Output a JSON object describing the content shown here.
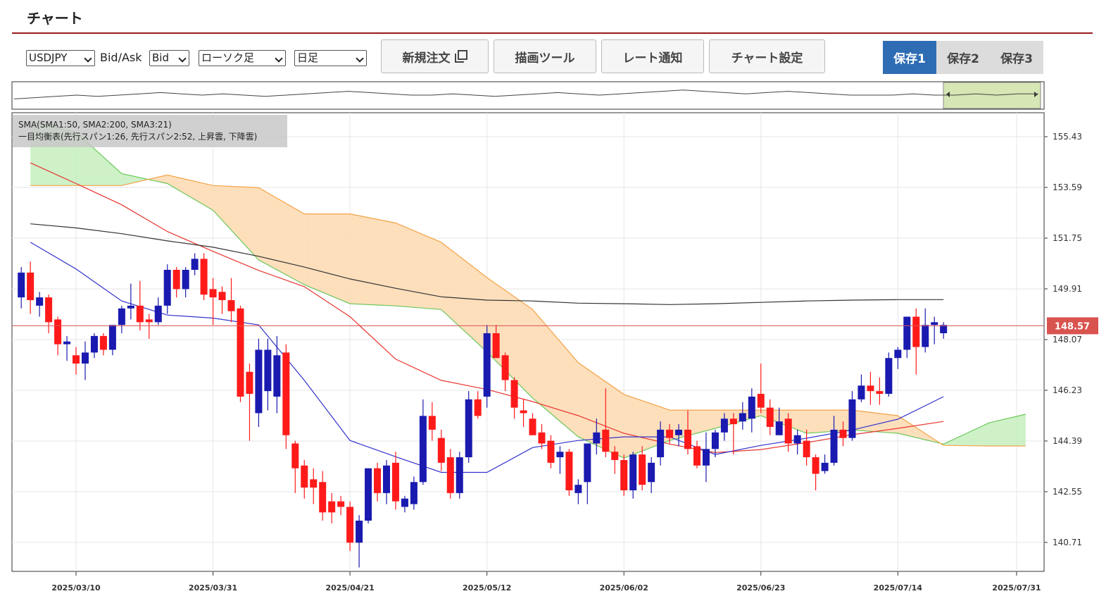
{
  "header": {
    "title": "チャート"
  },
  "toolbar": {
    "symbol": "USDJPY",
    "side_label": "Bid/Ask",
    "side": "Bid",
    "chart_style": "ローソク足",
    "period": "日足",
    "buttons": [
      "新規注文",
      "描画ツール",
      "レート通知",
      "チャート設定"
    ],
    "tabs": [
      "保存1",
      "保存2",
      "保存3"
    ]
  },
  "navigator": {
    "ylim": [
      140,
      160
    ],
    "values": [
      147,
      148,
      149,
      150,
      149,
      150,
      151,
      152,
      151,
      150,
      151,
      150,
      149,
      150,
      151,
      152,
      153,
      152,
      151,
      150,
      150,
      151,
      150,
      149,
      150,
      151,
      152,
      151,
      150,
      151,
      152,
      153,
      154,
      153,
      152,
      151,
      152,
      153,
      152,
      151,
      150,
      150,
      150,
      151,
      150,
      150,
      151,
      150,
      151,
      151
    ]
  },
  "chart_data": {
    "type": "candlestick",
    "legend_lines": [
      "SMA(SMA1:50, SMA2:200, SMA3:21)",
      "一目均衡表(先行スパン1:26, 先行スパン2:52, 上昇雲, 下降雲)"
    ],
    "categories": [
      "2025/02/28",
      "2025/03/03",
      "2025/03/04",
      "2025/03/05",
      "2025/03/06",
      "2025/03/07",
      "2025/03/10",
      "2025/03/11",
      "2025/03/12",
      "2025/03/13",
      "2025/03/14",
      "2025/03/17",
      "2025/03/18",
      "2025/03/19",
      "2025/03/20",
      "2025/03/21",
      "2025/03/24",
      "2025/03/25",
      "2025/03/26",
      "2025/03/27",
      "2025/03/28",
      "2025/03/31",
      "2025/04/01",
      "2025/04/02",
      "2025/04/03",
      "2025/04/04",
      "2025/04/07",
      "2025/04/08",
      "2025/04/09",
      "2025/04/10",
      "2025/04/11",
      "2025/04/14",
      "2025/04/15",
      "2025/04/16",
      "2025/04/17",
      "2025/04/18",
      "2025/04/21",
      "2025/04/22",
      "2025/04/23",
      "2025/04/24",
      "2025/04/25",
      "2025/04/28",
      "2025/04/29",
      "2025/04/30",
      "2025/05/01",
      "2025/05/02",
      "2025/05/05",
      "2025/05/06",
      "2025/05/07",
      "2025/05/08",
      "2025/05/09",
      "2025/05/12",
      "2025/05/13",
      "2025/05/14",
      "2025/05/15",
      "2025/05/16",
      "2025/05/19",
      "2025/05/20",
      "2025/05/21",
      "2025/05/22",
      "2025/05/23",
      "2025/05/26",
      "2025/05/27",
      "2025/05/28",
      "2025/05/29",
      "2025/05/30",
      "2025/06/02",
      "2025/06/03",
      "2025/06/04",
      "2025/06/05",
      "2025/06/06",
      "2025/06/09",
      "2025/06/10",
      "2025/06/11",
      "2025/06/12",
      "2025/06/13",
      "2025/06/16",
      "2025/06/17",
      "2025/06/18",
      "2025/06/19",
      "2025/06/20",
      "2025/06/23",
      "2025/06/24",
      "2025/06/25",
      "2025/06/26",
      "2025/06/27",
      "2025/06/30",
      "2025/07/01",
      "2025/07/02",
      "2025/07/03",
      "2025/07/04",
      "2025/07/07",
      "2025/07/08",
      "2025/07/09",
      "2025/07/10",
      "2025/07/11",
      "2025/07/14",
      "2025/07/15",
      "2025/07/16",
      "2025/07/17",
      "2025/07/18",
      "2025/07/21",
      "2025/07/22",
      "2025/07/23",
      "2025/07/24",
      "2025/07/25",
      "2025/07/28",
      "2025/07/29",
      "2025/07/30",
      "2025/07/31",
      "2025/08/01"
    ],
    "open": [
      149.6,
      150.5,
      149.3,
      149.6,
      148.8,
      147.9,
      147.5,
      147.2,
      147.6,
      148.2,
      147.7,
      148.6,
      149.2,
      149.3,
      148.8,
      148.7,
      149.3,
      150.6,
      149.9,
      150.6,
      151.0,
      149.9,
      149.8,
      149.5,
      149.2,
      146.9,
      145.4,
      146.2,
      146.0,
      147.6,
      144.3,
      143.5,
      143.0,
      142.9,
      142.2,
      142.2,
      142.0,
      140.7,
      141.5,
      143.4,
      142.5,
      143.6,
      142.0,
      142.1,
      142.9,
      145.3,
      144.5,
      143.8,
      142.5,
      143.8,
      145.9,
      146.0,
      148.3,
      147.5,
      146.6,
      145.5,
      145.2,
      144.7,
      144.4,
      143.8,
      144.0,
      142.5,
      142.9,
      144.3,
      144.8,
      144.0,
      143.7,
      142.6,
      143.9,
      142.9,
      143.8,
      144.8,
      144.6,
      144.8,
      144.2,
      143.5,
      144.1,
      144.7,
      145.2,
      145.1,
      145.2,
      146.1,
      145.6,
      144.6,
      145.2,
      144.3,
      144.4,
      143.8,
      143.3,
      143.6,
      144.8,
      144.5,
      145.9,
      146.4,
      146.2,
      146.1,
      147.4,
      147.7,
      148.9,
      147.8,
      148.6,
      148.3,
      null,
      null,
      null,
      null,
      null,
      null,
      null,
      null,
      null
    ],
    "high": [
      150.7,
      150.9,
      149.8,
      149.7,
      148.9,
      148.2,
      147.8,
      148.0,
      148.3,
      148.3,
      148.6,
      149.3,
      150.1,
      150.2,
      149.0,
      149.6,
      150.8,
      150.7,
      150.7,
      151.2,
      151.2,
      150.3,
      150.0,
      150.3,
      149.3,
      147.2,
      148.1,
      148.1,
      148.2,
      147.9,
      144.4,
      143.7,
      143.4,
      143.3,
      142.5,
      142.4,
      142.2,
      141.7,
      143.4,
      143.6,
      143.7,
      144.0,
      142.4,
      143.1,
      145.9,
      145.8,
      144.8,
      144.1,
      144.0,
      146.2,
      146.2,
      148.6,
      148.6,
      147.6,
      146.7,
      145.9,
      145.4,
      145.0,
      144.6,
      144.2,
      144.1,
      143.0,
      144.3,
      145.2,
      146.3,
      144.2,
      143.9,
      144.0,
      144.2,
      143.8,
      145.1,
      145.0,
      145.0,
      145.5,
      144.4,
      144.7,
      144.8,
      145.4,
      145.4,
      145.8,
      146.3,
      147.2,
      145.9,
      145.6,
      145.4,
      144.8,
      144.8,
      143.9,
      143.9,
      145.3,
      145.1,
      146.2,
      146.8,
      146.9,
      146.7,
      147.6,
      147.8,
      148.9,
      149.2,
      149.2,
      148.9,
      148.7,
      null,
      null,
      null,
      null,
      null,
      null,
      null,
      null,
      null
    ],
    "low": [
      149.2,
      149.0,
      148.9,
      148.3,
      147.5,
      147.3,
      146.8,
      146.6,
      147.4,
      147.5,
      147.5,
      148.3,
      148.8,
      148.4,
      148.1,
      148.6,
      149.0,
      149.6,
      149.6,
      150.4,
      149.5,
      148.6,
      149.0,
      148.7,
      145.8,
      144.4,
      144.9,
      145.5,
      145.4,
      144.1,
      142.5,
      142.3,
      142.1,
      141.5,
      141.4,
      141.7,
      140.4,
      139.8,
      141.4,
      142.2,
      142.1,
      141.9,
      141.8,
      141.9,
      142.8,
      144.4,
      143.3,
      142.3,
      142.3,
      143.6,
      145.2,
      145.6,
      147.4,
      146.2,
      145.2,
      144.9,
      144.6,
      144.1,
      143.4,
      143.2,
      142.4,
      142.1,
      142.1,
      143.9,
      143.8,
      143.2,
      142.4,
      142.3,
      142.6,
      142.5,
      143.5,
      144.3,
      144.2,
      143.9,
      143.4,
      142.9,
      143.8,
      144.4,
      143.9,
      144.8,
      144.7,
      145.4,
      144.6,
      144.6,
      144.0,
      143.9,
      143.5,
      142.6,
      143.2,
      143.5,
      144.2,
      144.4,
      145.8,
      145.7,
      145.7,
      146.0,
      147.0,
      147.4,
      146.8,
      147.6,
      147.9,
      148.1,
      null,
      null,
      null,
      null,
      null,
      null,
      null,
      null,
      null
    ],
    "close": [
      150.5,
      149.5,
      149.6,
      148.7,
      147.9,
      148.0,
      147.2,
      147.6,
      148.2,
      147.7,
      148.6,
      149.2,
      149.3,
      148.7,
      148.7,
      149.3,
      150.6,
      149.9,
      150.6,
      151.0,
      149.7,
      149.6,
      149.5,
      149.1,
      146.0,
      146.1,
      147.7,
      147.7,
      147.5,
      144.6,
      143.4,
      142.7,
      142.7,
      141.8,
      141.8,
      142.0,
      140.7,
      141.5,
      143.4,
      142.5,
      143.5,
      142.2,
      142.3,
      142.9,
      145.3,
      144.8,
      143.6,
      142.5,
      143.8,
      145.9,
      145.3,
      148.3,
      147.4,
      146.6,
      145.6,
      145.4,
      144.6,
      144.3,
      143.6,
      144.0,
      142.6,
      142.8,
      144.3,
      144.7,
      144.0,
      143.7,
      142.6,
      143.9,
      142.8,
      143.6,
      144.8,
      144.5,
      144.8,
      144.1,
      143.5,
      144.1,
      144.7,
      145.2,
      145.0,
      145.4,
      146.0,
      145.6,
      144.9,
      145.1,
      144.3,
      144.6,
      143.8,
      143.2,
      143.6,
      144.8,
      144.5,
      145.9,
      146.4,
      146.2,
      146.1,
      147.4,
      147.7,
      148.9,
      147.8,
      148.6,
      148.7,
      148.6,
      null,
      null,
      null,
      null,
      null,
      null,
      null,
      null,
      null
    ],
    "up_color": "#1a1ab0",
    "down_color": "#ff1a1a",
    "lines": [
      {
        "color": "#e8352e",
        "x": [
          "2025/03/03",
          "2025/03/10",
          "2025/03/17",
          "2025/03/24",
          "2025/03/31",
          "2025/04/07",
          "2025/04/14",
          "2025/04/21",
          "2025/04/28",
          "2025/05/05",
          "2025/05/12",
          "2025/05/19",
          "2025/05/26",
          "2025/06/02",
          "2025/06/09",
          "2025/06/16",
          "2025/06/23",
          "2025/06/30",
          "2025/07/07",
          "2025/07/14",
          "2025/07/21"
        ],
        "values": [
          154.48,
          153.73,
          152.96,
          151.99,
          151.27,
          150.58,
          149.99,
          148.9,
          147.36,
          146.59,
          146.26,
          145.82,
          145.31,
          144.67,
          144.28,
          143.97,
          144.08,
          144.33,
          144.62,
          144.85,
          145.1
        ]
      },
      {
        "color": "#333333",
        "x": [
          "2025/03/03",
          "2025/03/10",
          "2025/03/17",
          "2025/03/24",
          "2025/03/31",
          "2025/04/07",
          "2025/04/14",
          "2025/04/21",
          "2025/04/28",
          "2025/05/05",
          "2025/05/12",
          "2025/05/19",
          "2025/05/26",
          "2025/06/02",
          "2025/06/09",
          "2025/06/16",
          "2025/06/23",
          "2025/06/30",
          "2025/07/07",
          "2025/07/14",
          "2025/07/21"
        ],
        "values": [
          152.27,
          152.12,
          151.91,
          151.65,
          151.42,
          151.09,
          150.7,
          150.27,
          149.93,
          149.62,
          149.5,
          149.47,
          149.39,
          149.37,
          149.34,
          149.37,
          149.42,
          149.47,
          149.5,
          149.52,
          149.52
        ]
      },
      {
        "color": "#3333cc",
        "x": [
          "2025/03/03",
          "2025/03/10",
          "2025/03/17",
          "2025/03/24",
          "2025/03/31",
          "2025/04/07",
          "2025/04/14",
          "2025/04/21",
          "2025/04/28",
          "2025/05/05",
          "2025/05/12",
          "2025/05/19",
          "2025/05/26",
          "2025/06/02",
          "2025/06/09",
          "2025/06/16",
          "2025/06/23",
          "2025/06/30",
          "2025/07/07",
          "2025/07/14",
          "2025/07/21"
        ],
        "values": [
          151.6,
          150.63,
          149.47,
          148.96,
          148.85,
          148.6,
          146.59,
          144.41,
          143.82,
          143.25,
          143.25,
          144.15,
          144.41,
          144.54,
          144.54,
          143.9,
          144.23,
          144.49,
          144.79,
          145.18,
          146.0
        ]
      }
    ],
    "cloud": {
      "x": [
        "2025/03/03",
        "2025/03/10",
        "2025/03/17",
        "2025/03/24",
        "2025/03/31",
        "2025/04/07",
        "2025/04/14",
        "2025/04/21",
        "2025/04/28",
        "2025/05/05",
        "2025/05/12",
        "2025/05/19",
        "2025/05/26",
        "2025/06/02",
        "2025/06/09",
        "2025/06/16",
        "2025/06/23",
        "2025/06/30",
        "2025/07/07",
        "2025/07/14",
        "2025/07/21",
        "2025/07/28",
        "2025/08/01"
      ],
      "span_a": [
        155.97,
        155.59,
        154.09,
        153.73,
        152.76,
        150.96,
        150.06,
        149.37,
        149.29,
        149.16,
        147.62,
        145.95,
        144.54,
        143.77,
        144.41,
        144.85,
        145.31,
        144.67,
        144.79,
        144.67,
        144.28,
        145.05,
        145.36
      ],
      "span_b": [
        153.66,
        153.66,
        153.66,
        154.04,
        153.66,
        153.58,
        152.63,
        152.63,
        152.3,
        151.6,
        150.32,
        149.16,
        147.23,
        146.08,
        145.51,
        145.51,
        145.51,
        145.51,
        145.51,
        145.31,
        144.23,
        144.21,
        144.21
      ],
      "span_a_color": "#6cc85a",
      "span_b_color": "#f3a346",
      "up_fill": "#c6efbe",
      "down_fill": "#fdd9b0"
    },
    "current_price": 148.57,
    "current_price_color": "#d9534f",
    "ylim": [
      139.66,
      156.3
    ],
    "yticks": [
      155.43,
      153.59,
      151.75,
      149.91,
      148.07,
      146.23,
      144.39,
      142.55,
      140.71
    ],
    "xticks": [
      "2025/03/10",
      "2025/03/31",
      "2025/04/21",
      "2025/05/12",
      "2025/06/02",
      "2025/06/23",
      "2025/07/14",
      "2025/07/31"
    ],
    "grid": true
  }
}
